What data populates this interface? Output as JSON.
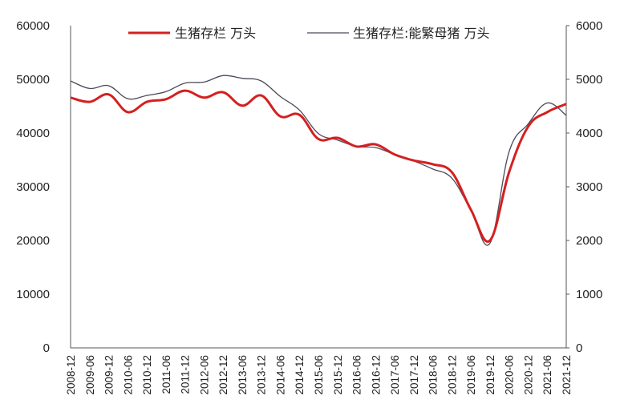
{
  "chart_data": {
    "type": "line",
    "title": "",
    "xlabel": "",
    "ylabel": "",
    "y2label": "",
    "grid": false,
    "legend_position": "top",
    "x": [
      "2008-12",
      "2009-06",
      "2009-12",
      "2010-06",
      "2010-12",
      "2011-06",
      "2011-12",
      "2012-06",
      "2012-12",
      "2013-06",
      "2013-12",
      "2014-06",
      "2014-12",
      "2015-06",
      "2015-12",
      "2016-06",
      "2016-12",
      "2017-06",
      "2017-12",
      "2018-06",
      "2018-12",
      "2019-06",
      "2019-12",
      "2020-06",
      "2020-12",
      "2021-06",
      "2021-12"
    ],
    "x_tick_labels": [
      "2008-12",
      "2009-06",
      "2009-12",
      "2010-06",
      "2010-12",
      "2011-06",
      "2011-12",
      "2012-06",
      "2012-12",
      "2013-06",
      "2013-12",
      "2014-06",
      "2014-12",
      "2015-06",
      "2015-12",
      "2016-06",
      "2016-12",
      "2017-06",
      "2017-12",
      "2018-06",
      "2018-12",
      "2019-06",
      "2019-12",
      "2020-06",
      "2020-12",
      "2021-06",
      "2021-12"
    ],
    "y_left": {
      "ylim": [
        0,
        60000
      ],
      "ticks": [
        "60000",
        "50000",
        "40000",
        "30000",
        "20000",
        "10000",
        "0"
      ]
    },
    "y_right": {
      "ylim": [
        0,
        6000
      ],
      "ticks": [
        "6000",
        "5000",
        "4000",
        "3000",
        "2000",
        "1000",
        "0"
      ]
    },
    "series": [
      {
        "name": "生猪存栏 万头",
        "axis": "left",
        "color": "#d42020",
        "line_width": 3,
        "values": [
          46600,
          45800,
          47200,
          43900,
          45800,
          46300,
          47900,
          46600,
          47600,
          45100,
          47000,
          43100,
          43400,
          38900,
          39100,
          37500,
          37900,
          36000,
          34900,
          34200,
          32700,
          25700,
          20000,
          32700,
          41200,
          43900,
          45400
        ]
      },
      {
        "name": "生猪存栏:能繁母猪 万头",
        "axis": "right",
        "color": "#4a4a5a",
        "line_width": 1.3,
        "values": [
          4970,
          4830,
          4880,
          4640,
          4700,
          4770,
          4930,
          4950,
          5070,
          5020,
          4970,
          4680,
          4430,
          3990,
          3870,
          3750,
          3730,
          3600,
          3480,
          3330,
          3160,
          2560,
          1950,
          3650,
          4170,
          4560,
          4330
        ]
      }
    ]
  },
  "legend": {
    "items": [
      {
        "label": "生猪存栏 万头",
        "color": "#d42020"
      },
      {
        "label": "生猪存栏:能繁母猪 万头",
        "color": "#4a4a5a"
      }
    ]
  }
}
